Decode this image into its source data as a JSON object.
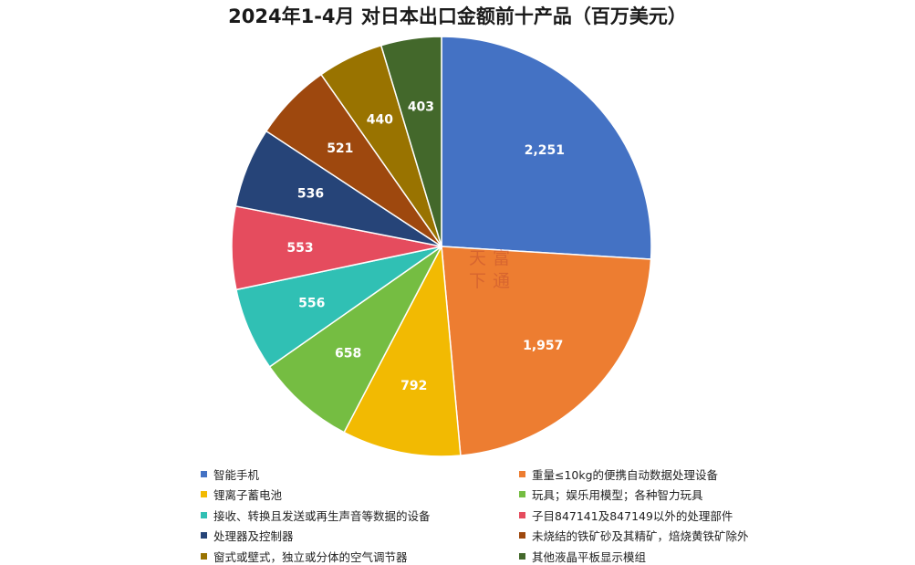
{
  "chart_data": {
    "type": "pie",
    "title": "2024年1-4月 对日本出口金额前十产品（百万美元）",
    "categories": [
      "智能手机",
      "重量≤10kg的便携自动数据处理设备",
      "锂离子蓄电池",
      "玩具；娱乐用模型；各种智力玩具",
      "接收、转换且发送或再生声音等数据的设备",
      "子目847141及847149以外的处理部件",
      "处理器及控制器",
      "未烧结的铁矿砂及其精矿，焙烧黄铁矿除外",
      "窗式或壁式，独立或分体的空气调节器",
      "其他液晶平板显示模组"
    ],
    "values": [
      2251,
      1957,
      792,
      658,
      556,
      553,
      536,
      521,
      440,
      403
    ],
    "value_labels": [
      "2,251",
      "1,957",
      "792",
      "658",
      "556",
      "553",
      "536",
      "521",
      "440",
      "403"
    ],
    "colors": [
      "#4472C4",
      "#ED7D31",
      "#F2BA02",
      "#75BD42",
      "#30C0B4",
      "#E54C5E",
      "#264478",
      "#9E480E",
      "#997300",
      "#43682B"
    ],
    "legend_position": "bottom"
  },
  "watermark": {
    "chars": [
      "天",
      "富",
      "下",
      "通"
    ]
  }
}
